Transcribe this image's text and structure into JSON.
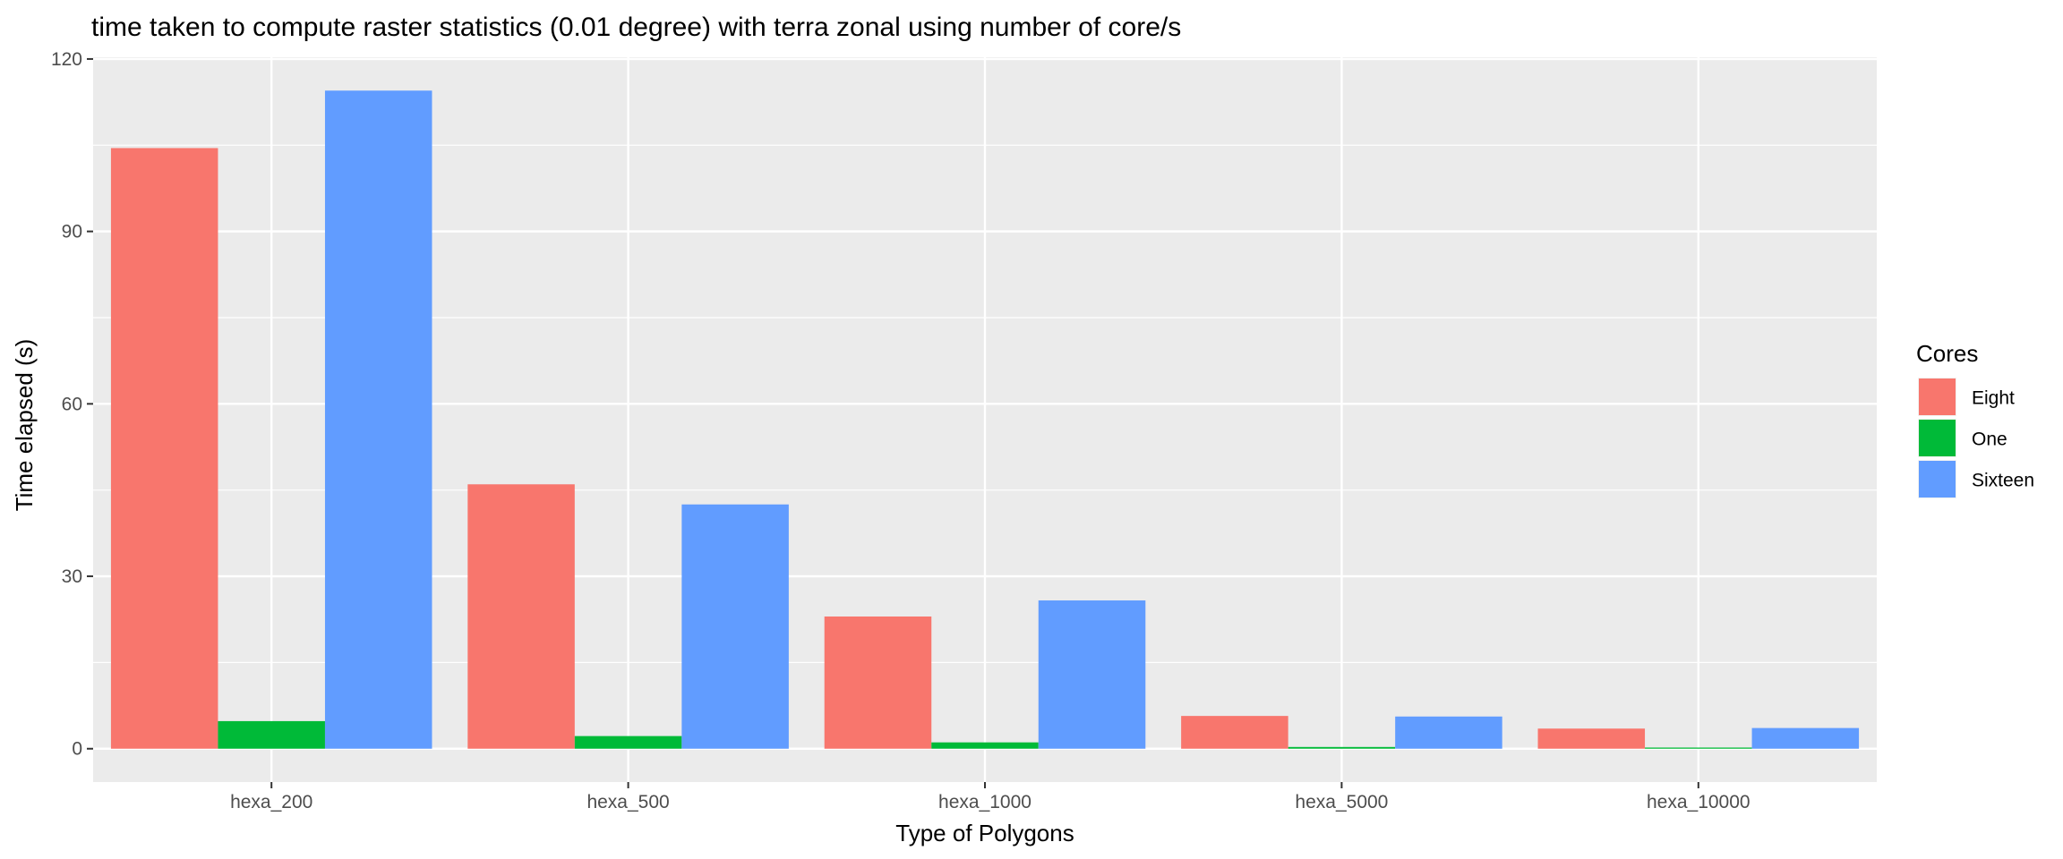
{
  "chart_data": {
    "type": "bar",
    "title": "time taken to compute raster statistics (0.01 degree) with terra zonal using number of core/s",
    "xlabel": "Type of Polygons",
    "ylabel": "Time elapsed (s)",
    "categories": [
      "hexa_200",
      "hexa_500",
      "hexa_1000",
      "hexa_5000",
      "hexa_10000"
    ],
    "series": [
      {
        "name": "Eight",
        "color": "#F8766D",
        "values": [
          104.5,
          46.0,
          23.0,
          5.7,
          3.5
        ]
      },
      {
        "name": "One",
        "color": "#00BA38",
        "values": [
          4.8,
          2.2,
          1.1,
          0.3,
          0.2
        ]
      },
      {
        "name": "Sixteen",
        "color": "#619CFF",
        "values": [
          114.5,
          42.5,
          25.8,
          5.6,
          3.6
        ]
      }
    ],
    "y_ticks": [
      0,
      30,
      60,
      90,
      120
    ],
    "y_tick_labels": [
      "0",
      "30",
      "60",
      "90",
      "120"
    ],
    "ylim": [
      -5.8,
      120.3
    ],
    "grid": true,
    "panel_background": "#EBEBEB",
    "legend": {
      "title": "Cores",
      "position": "right"
    }
  }
}
